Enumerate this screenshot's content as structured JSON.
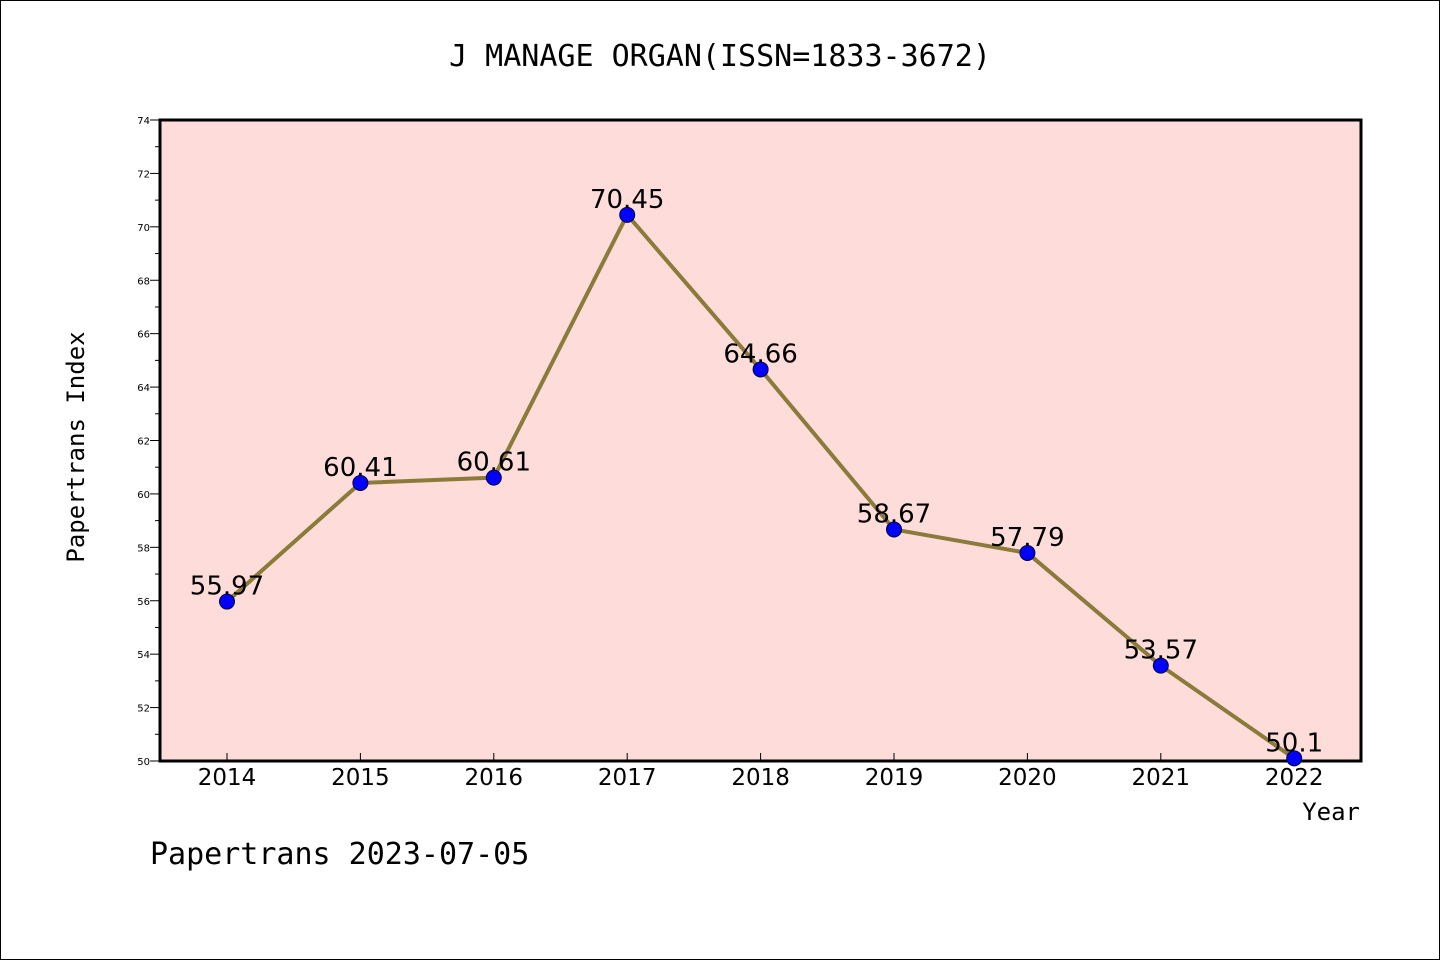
{
  "chart_data": {
    "type": "line",
    "title": "J MANAGE ORGAN(ISSN=1833-3672)",
    "xlabel": "Year",
    "ylabel": "Papertrans Index",
    "footer": "Papertrans 2023-07-05",
    "x": [
      "2014",
      "2015",
      "2016",
      "2017",
      "2018",
      "2019",
      "2020",
      "2021",
      "2022"
    ],
    "values": [
      55.97,
      60.41,
      60.61,
      70.45,
      64.66,
      58.67,
      57.79,
      53.57,
      50.1
    ],
    "value_labels": [
      "55.97",
      "60.41",
      "60.61",
      "70.45",
      "64.66",
      "58.67",
      "57.79",
      "53.57",
      "50.1"
    ],
    "ylim": [
      50,
      74
    ],
    "yticks": [
      50,
      52,
      54,
      56,
      58,
      60,
      62,
      64,
      66,
      68,
      70,
      72,
      74
    ],
    "grid": false,
    "colors": {
      "plot_background": "#fddcda",
      "line": "#8b7a3a",
      "marker": "#0000ff"
    }
  }
}
